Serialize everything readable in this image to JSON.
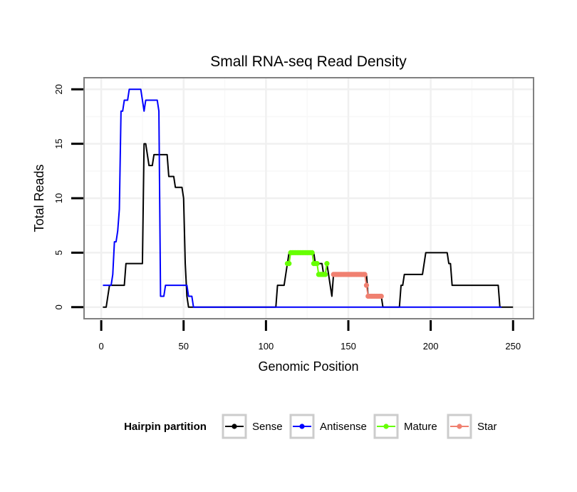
{
  "chart_data": {
    "type": "line",
    "title": "Small RNA-seq Read Density",
    "xlabel": "Genomic Position",
    "ylabel": "Total Reads",
    "xlim": [
      -10,
      262
    ],
    "ylim": [
      -1,
      21
    ],
    "x_ticks": [
      0,
      50,
      100,
      150,
      200,
      250
    ],
    "y_ticks": [
      0,
      5,
      10,
      15,
      20
    ],
    "x_tick_labels": [
      "0",
      "50",
      "100",
      "150",
      "200",
      "250"
    ],
    "y_tick_labels": [
      "0",
      "5",
      "10",
      "15",
      "20"
    ],
    "grid": true,
    "legend": {
      "title": "Hairpin partition",
      "position": "bottom",
      "entries": [
        "Sense",
        "Antisense",
        "Mature",
        "Star"
      ]
    },
    "series": [
      {
        "name": "Sense",
        "color": "#000000",
        "style": "line",
        "x": [
          1,
          3,
          5,
          14,
          15,
          25,
          26,
          27,
          29,
          31,
          32,
          40,
          41,
          44,
          45,
          49,
          50,
          51,
          52,
          53,
          54,
          106,
          107,
          111,
          112,
          113,
          114,
          115,
          129,
          130,
          131,
          134,
          135,
          136,
          137,
          138,
          139,
          140,
          141,
          161,
          162,
          170,
          171,
          181,
          182,
          183,
          184,
          195,
          196,
          197,
          210,
          211,
          212,
          213,
          241,
          242,
          243,
          250
        ],
        "y": [
          0,
          0,
          2,
          2,
          4,
          4,
          15,
          15,
          13,
          13,
          14,
          14,
          12,
          12,
          11,
          11,
          10,
          4,
          1,
          0,
          0,
          0,
          2,
          2,
          3,
          4,
          5,
          5,
          5,
          4,
          4,
          4,
          3,
          3,
          4,
          3,
          2,
          1,
          3,
          3,
          1,
          1,
          0,
          0,
          2,
          2,
          3,
          3,
          4,
          5,
          5,
          4,
          4,
          2,
          2,
          0,
          0,
          0
        ]
      },
      {
        "name": "Antisense",
        "color": "#0000ff",
        "style": "line",
        "x": [
          1,
          6,
          7,
          8,
          9,
          10,
          11,
          12,
          13,
          14,
          15,
          16,
          17,
          18,
          24,
          25,
          26,
          27,
          34,
          35,
          36,
          37,
          38,
          39,
          52,
          53,
          54,
          55,
          56,
          57,
          60,
          100,
          150,
          200,
          243
        ],
        "y": [
          2,
          2,
          3,
          6,
          6,
          7,
          9,
          18,
          18,
          19,
          19,
          19,
          20,
          20,
          20,
          19,
          18,
          19,
          19,
          18,
          1,
          1,
          1,
          2,
          2,
          1,
          1,
          1,
          0,
          0,
          0,
          0,
          0,
          0,
          0
        ]
      },
      {
        "name": "Mature",
        "color": "#66ff00",
        "style": "points",
        "x": [
          113,
          114,
          115,
          116,
          117,
          118,
          119,
          120,
          121,
          122,
          123,
          124,
          125,
          126,
          127,
          128,
          129,
          130,
          131,
          132,
          133,
          134,
          135,
          136,
          137
        ],
        "y": [
          4,
          4,
          5,
          5,
          5,
          5,
          5,
          5,
          5,
          5,
          5,
          5,
          5,
          5,
          5,
          5,
          4,
          4,
          4,
          3,
          3,
          3,
          3,
          3,
          4
        ]
      },
      {
        "name": "Star",
        "color": "#f08070",
        "style": "points",
        "x": [
          141,
          142,
          143,
          144,
          145,
          146,
          147,
          148,
          149,
          150,
          151,
          152,
          153,
          154,
          155,
          156,
          157,
          158,
          159,
          160,
          161,
          162,
          163,
          164,
          165,
          166,
          167,
          168,
          169,
          170
        ],
        "y": [
          3,
          3,
          3,
          3,
          3,
          3,
          3,
          3,
          3,
          3,
          3,
          3,
          3,
          3,
          3,
          3,
          3,
          3,
          3,
          3,
          2,
          1,
          1,
          1,
          1,
          1,
          1,
          1,
          1,
          1
        ]
      }
    ]
  }
}
